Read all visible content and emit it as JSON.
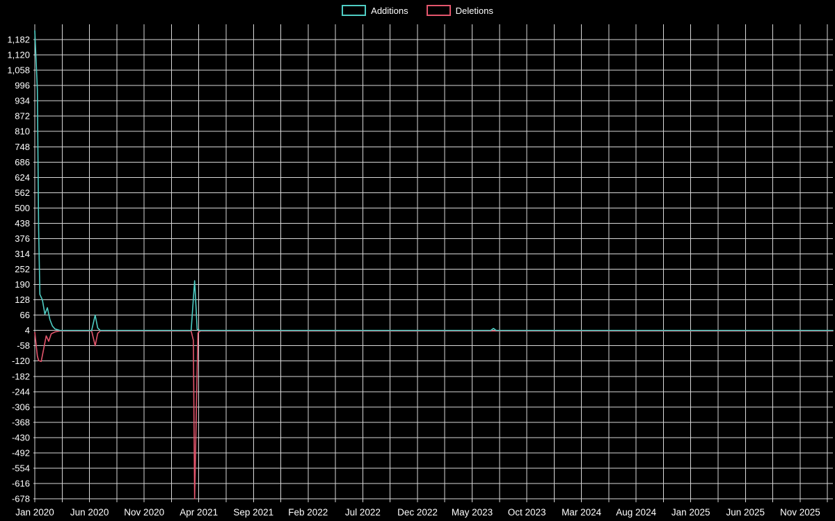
{
  "chart_data": {
    "type": "line",
    "title": "",
    "legend_position": "top-center",
    "background_color": "#000000",
    "grid": {
      "on": true,
      "color": "#d9d9d9",
      "text_color": "#ffffff"
    },
    "x_axis": {
      "unit": "months since Jan 2020 (weekly commit activity)",
      "range_months": [
        -0.13,
        73
      ],
      "gridline_step_months": 2.5,
      "tick_positions_months": [
        0,
        5,
        10,
        15,
        20,
        25,
        30,
        35,
        40,
        45,
        50,
        55,
        60,
        65,
        70
      ],
      "tick_labels": [
        "Jan 2020",
        "Jun 2020",
        "Nov 2020",
        "Apr 2021",
        "Sep 2021",
        "Feb 2022",
        "Jul 2022",
        "Dec 2022",
        "May 2023",
        "Oct 2023",
        "Mar 2024",
        "Aug 2024",
        "Jan 2025",
        "Jun 2025",
        "Nov 2025"
      ]
    },
    "y_axis": {
      "range": [
        -692,
        1244
      ],
      "tick_step": 62,
      "tick_values": [
        1182,
        1120,
        1058,
        996,
        934,
        872,
        810,
        748,
        686,
        624,
        562,
        500,
        438,
        376,
        314,
        252,
        190,
        128,
        66,
        4,
        -58,
        -120,
        -182,
        -244,
        -306,
        -368,
        -430,
        -492,
        -554,
        -616,
        -678
      ],
      "tick_labels": [
        "1,182",
        "1,120",
        "1,058",
        "996",
        "934",
        "872",
        "810",
        "748",
        "686",
        "624",
        "562",
        "500",
        "438",
        "376",
        "314",
        "252",
        "190",
        "128",
        "66",
        "4",
        "-58",
        "-120",
        "-182",
        "-244",
        "-306",
        "-368",
        "-430",
        "-492",
        "-554",
        "-616",
        "-678"
      ]
    },
    "series": [
      {
        "name": "Additions",
        "color": "#4fcdc4",
        "points": [
          [
            0,
            1218
          ],
          [
            0.23,
            980
          ],
          [
            0.35,
            420
          ],
          [
            0.46,
            150
          ],
          [
            0.69,
            128
          ],
          [
            0.92,
            70
          ],
          [
            1.15,
            96
          ],
          [
            1.38,
            48
          ],
          [
            1.61,
            22
          ],
          [
            1.84,
            10
          ],
          [
            2.3,
            4
          ],
          [
            5.2,
            4
          ],
          [
            5.52,
            66
          ],
          [
            5.75,
            14
          ],
          [
            5.98,
            4
          ],
          [
            14.3,
            4
          ],
          [
            14.62,
            205
          ],
          [
            14.85,
            8
          ],
          [
            15.1,
            4
          ],
          [
            41.7,
            4
          ],
          [
            41.95,
            12
          ],
          [
            42.2,
            4
          ],
          [
            73,
            4
          ]
        ]
      },
      {
        "name": "Deletions",
        "color": "#e4566d",
        "points": [
          [
            0,
            -4
          ],
          [
            0.23,
            -100
          ],
          [
            0.35,
            -118
          ],
          [
            0.58,
            -122
          ],
          [
            0.81,
            -70
          ],
          [
            1.04,
            -18
          ],
          [
            1.27,
            -40
          ],
          [
            1.5,
            -10
          ],
          [
            1.84,
            -2
          ],
          [
            2.3,
            2
          ],
          [
            5.2,
            2
          ],
          [
            5.52,
            -58
          ],
          [
            5.75,
            -8
          ],
          [
            5.98,
            2
          ],
          [
            14.3,
            2
          ],
          [
            14.5,
            -36
          ],
          [
            14.62,
            -678
          ],
          [
            14.78,
            -306
          ],
          [
            14.92,
            -6
          ],
          [
            15.15,
            2
          ],
          [
            73,
            2
          ]
        ]
      }
    ]
  }
}
